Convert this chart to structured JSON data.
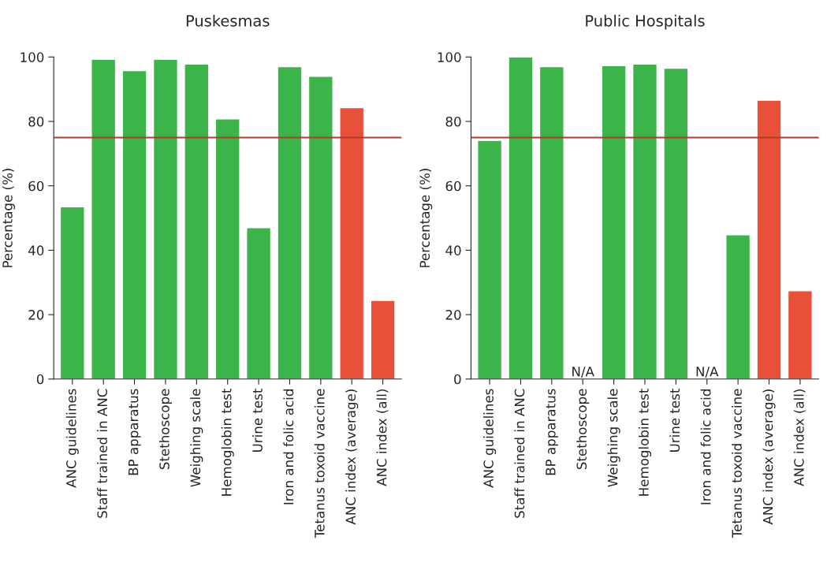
{
  "chart_data": [
    {
      "type": "bar",
      "title": "Puskesmas",
      "ylabel": "Percentage (%)",
      "categories": [
        "ANC guidelines",
        "Staff trained in ANC",
        "BP apparatus",
        "Stethoscope",
        "Weighing scale",
        "Hemoglobin test",
        "Urine test",
        "Iron and folic acid",
        "Tetanus toxoid vaccine",
        "ANC index (average)",
        "ANC index (all)"
      ],
      "values": [
        53.5,
        99.3,
        95.8,
        99.3,
        97.8,
        80.8,
        47,
        97,
        94,
        84.3,
        24.4
      ],
      "colors": [
        "#3bb54a",
        "#3bb54a",
        "#3bb54a",
        "#3bb54a",
        "#3bb54a",
        "#3bb54a",
        "#3bb54a",
        "#3bb54a",
        "#3bb54a",
        "#e8503a",
        "#e8503a"
      ],
      "ylim": [
        0,
        100
      ],
      "yticks": [
        0,
        20,
        40,
        60,
        80,
        100
      ],
      "grid": false,
      "ref_lines": [
        {
          "axis": "y",
          "value": 75,
          "color": "#b03a2e"
        }
      ]
    },
    {
      "type": "bar",
      "title": "Public Hospitals",
      "ylabel": "Percentage (%)",
      "categories": [
        "ANC guidelines",
        "Staff trained in ANC",
        "BP apparatus",
        "Stethoscope",
        "Weighing scale",
        "Hemoglobin test",
        "Urine test",
        "Iron and folic acid",
        "Tetanus toxoid vaccine",
        "ANC index (average)",
        "ANC index (all)"
      ],
      "values": [
        74.1,
        100,
        97,
        null,
        97.3,
        97.8,
        96.5,
        null,
        44.8,
        86.6,
        27.4
      ],
      "colors": [
        "#3bb54a",
        "#3bb54a",
        "#3bb54a",
        "#3bb54a",
        "#3bb54a",
        "#3bb54a",
        "#3bb54a",
        "#3bb54a",
        "#3bb54a",
        "#e8503a",
        "#e8503a"
      ],
      "ylim": [
        0,
        100
      ],
      "yticks": [
        0,
        20,
        40,
        60,
        80,
        100
      ],
      "grid": false,
      "value_labels": [
        null,
        null,
        null,
        "N/A",
        null,
        null,
        null,
        "N/A",
        null,
        null,
        null
      ],
      "ref_lines": [
        {
          "axis": "y",
          "value": 75,
          "color": "#b03a2e"
        }
      ]
    }
  ]
}
